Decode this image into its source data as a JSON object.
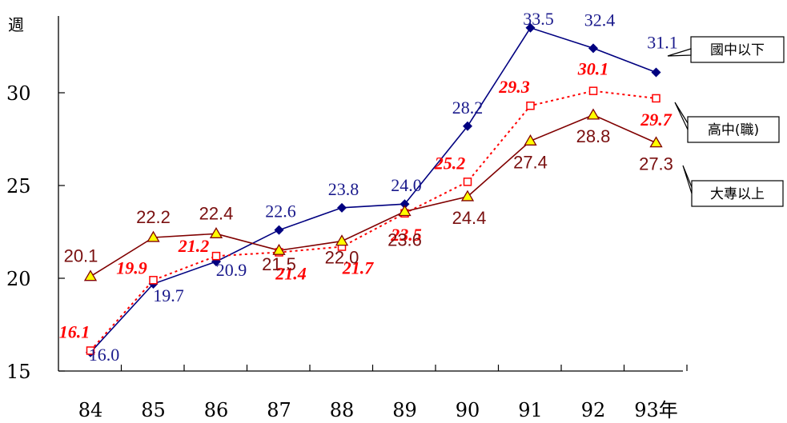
{
  "chart_data": {
    "type": "line",
    "ylabel": "週",
    "ylim": [
      15,
      34.5
    ],
    "yticks": [
      15,
      20,
      25,
      30
    ],
    "categories": [
      "84",
      "85",
      "86",
      "87",
      "88",
      "89",
      "90",
      "91",
      "92",
      "93年"
    ],
    "grid": false,
    "series": [
      {
        "name": "國中以下",
        "color": "#000080",
        "marker": "diamond",
        "line_style": "solid",
        "values": [
          16.0,
          19.7,
          20.9,
          22.6,
          23.8,
          24.0,
          28.2,
          33.5,
          32.4,
          31.1
        ],
        "labels": [
          "16.0",
          "19.7",
          "20.9",
          "22.6",
          "23.8",
          "24.0",
          "28.2",
          "33.5",
          "32.4",
          "31.1"
        ]
      },
      {
        "name": "高中(職)",
        "color": "#ff0000",
        "marker": "square",
        "line_style": "dotted",
        "values": [
          16.1,
          19.9,
          21.2,
          21.4,
          21.7,
          23.5,
          25.2,
          29.3,
          30.1,
          29.7
        ],
        "labels": [
          "16.1",
          "19.9",
          "21.2",
          "21.4",
          "21.7",
          "23.5",
          "25.2",
          "29.3",
          "30.1",
          "29.7"
        ]
      },
      {
        "name": "大專以上",
        "color": "#800000",
        "marker": "triangle",
        "marker_fill": "#ffff00",
        "line_style": "solid",
        "values": [
          20.1,
          22.2,
          22.4,
          21.5,
          22.0,
          23.6,
          24.4,
          27.4,
          28.8,
          27.3
        ],
        "labels": [
          "20.1",
          "22.2",
          "22.4",
          "21.5",
          "22.0",
          "23.6",
          "24.4",
          "27.4",
          "28.8",
          "27.3"
        ]
      }
    ]
  }
}
